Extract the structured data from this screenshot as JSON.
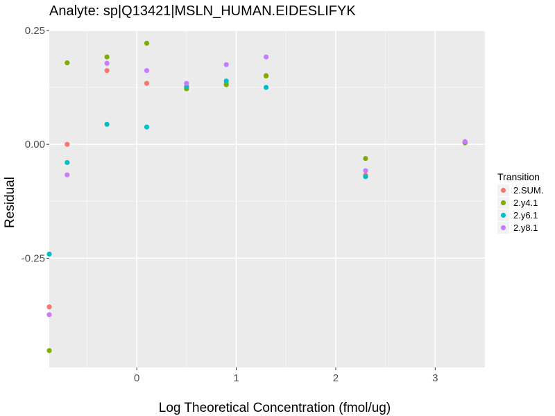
{
  "chart_data": {
    "type": "scatter",
    "title": "Analyte: sp|Q13421|MSLN_HUMAN.EIDESLIFYK",
    "xlabel": "Log Theoretical Concentration (fmol/ug)",
    "ylabel": "Residual",
    "xlim": [
      -0.88,
      3.5
    ],
    "ylim": [
      -0.49,
      0.25
    ],
    "x_ticks": [
      0,
      1,
      2,
      3
    ],
    "x_tick_labels": [
      "0",
      "1",
      "2",
      "3"
    ],
    "y_ticks": [
      0.25,
      0.0,
      -0.25
    ],
    "y_tick_labels": [
      "0.25",
      "0.00",
      "-0.25"
    ],
    "grid": true,
    "legend": {
      "title": "Transition",
      "position": "right"
    },
    "series": [
      {
        "name": "2.SUM.",
        "color": "#F8766D",
        "points": [
          [
            -0.88,
            -0.357
          ],
          [
            -0.7,
            0.0
          ],
          [
            -0.3,
            0.162
          ],
          [
            0.1,
            0.134
          ],
          [
            0.5,
            0.124
          ],
          [
            0.9,
            0.133
          ],
          [
            1.3,
            0.151
          ],
          [
            2.3,
            -0.068
          ],
          [
            3.3,
            0.003
          ]
        ]
      },
      {
        "name": "2.y4.1",
        "color": "#7CAE00",
        "points": [
          [
            -0.88,
            -0.453
          ],
          [
            -0.7,
            0.179
          ],
          [
            -0.3,
            0.192
          ],
          [
            0.1,
            0.222
          ],
          [
            0.5,
            0.122
          ],
          [
            0.9,
            0.131
          ],
          [
            1.3,
            0.15
          ],
          [
            2.3,
            -0.031
          ],
          [
            3.3,
            0.004
          ]
        ]
      },
      {
        "name": "2.y6.1",
        "color": "#00BFC4",
        "points": [
          [
            -0.88,
            -0.241
          ],
          [
            -0.7,
            -0.04
          ],
          [
            -0.3,
            0.044
          ],
          [
            0.1,
            0.038
          ],
          [
            0.5,
            0.127
          ],
          [
            0.9,
            0.139
          ],
          [
            1.3,
            0.125
          ],
          [
            2.3,
            -0.071
          ],
          [
            3.3,
            0.005
          ]
        ]
      },
      {
        "name": "2.y8.1",
        "color": "#C77CFF",
        "points": [
          [
            -0.88,
            -0.374
          ],
          [
            -0.7,
            -0.067
          ],
          [
            -0.3,
            0.178
          ],
          [
            0.1,
            0.162
          ],
          [
            0.5,
            0.134
          ],
          [
            0.9,
            0.175
          ],
          [
            1.3,
            0.192
          ],
          [
            2.3,
            -0.058
          ],
          [
            3.3,
            0.006
          ]
        ]
      }
    ]
  }
}
